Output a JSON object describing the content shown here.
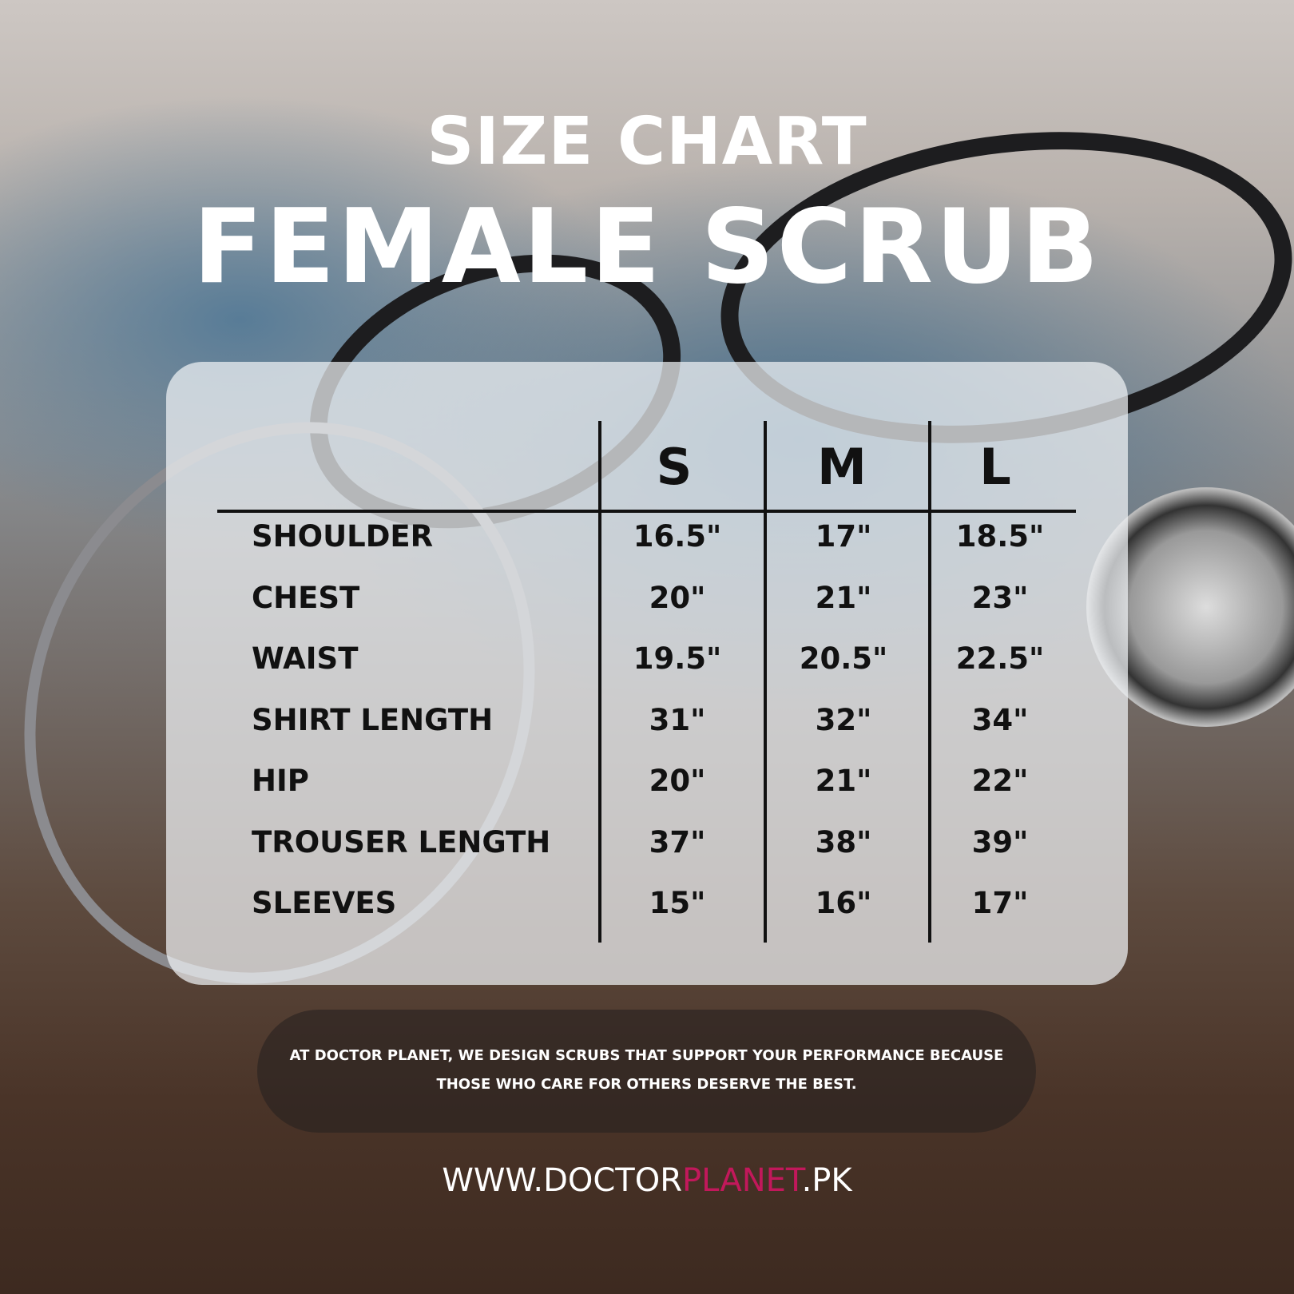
{
  "header": {
    "title": "SIZE CHART",
    "subtitle": "FEMALE SCRUB"
  },
  "table": {
    "columns": [
      "S",
      "M",
      "L"
    ],
    "rows": [
      {
        "label": "SHOULDER",
        "values": [
          "16.5\"",
          "17\"",
          "18.5\""
        ]
      },
      {
        "label": "CHEST",
        "values": [
          "20\"",
          "21\"",
          "23\""
        ]
      },
      {
        "label": "WAIST",
        "values": [
          "19.5\"",
          "20.5\"",
          "22.5\""
        ]
      },
      {
        "label": "SHIRT LENGTH",
        "values": [
          "31\"",
          "32\"",
          "34\""
        ]
      },
      {
        "label": "HIP",
        "values": [
          "20\"",
          "21\"",
          "22\""
        ]
      },
      {
        "label": "TROUSER LENGTH",
        "values": [
          "37\"",
          "38\"",
          "39\""
        ]
      },
      {
        "label": "SLEEVES",
        "values": [
          "15\"",
          "16\"",
          "17\""
        ]
      }
    ]
  },
  "footer": {
    "line1": "AT DOCTOR PLANET, WE DESIGN SCRUBS THAT SUPPORT YOUR PERFORMANCE BECAUSE",
    "line2": "THOSE WHO CARE FOR OTHERS DESERVE THE BEST.",
    "url_prefix": "WWW.DOCTOR",
    "url_brand": "PLANET",
    "url_suffix": ".PK"
  },
  "colors": {
    "brand": "#c2185b",
    "text": "#111111"
  }
}
